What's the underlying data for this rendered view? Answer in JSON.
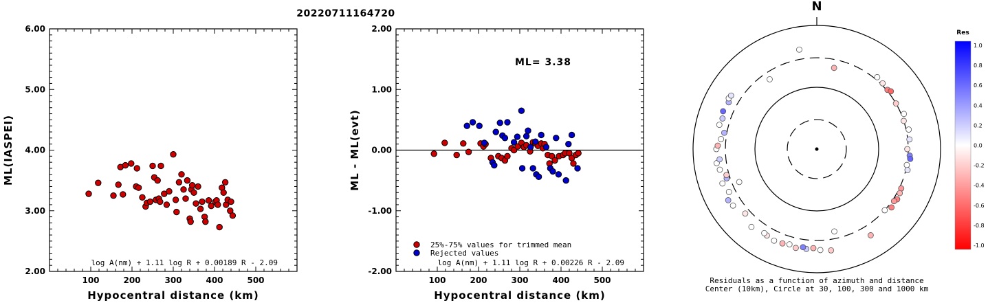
{
  "page_title": "20220711164720",
  "chart_data": [
    {
      "type": "scatter",
      "xlabel": "Hypocentral distance (km)",
      "ylabel": "ML(IASPEI)",
      "xlim": [
        0,
        600
      ],
      "ylim": [
        2.0,
        6.0
      ],
      "x_ticks": [
        "100",
        "200",
        "300",
        "400",
        "500"
      ],
      "y_ticks": [
        "2.00",
        "3.00",
        "4.00",
        "5.00",
        "6.00"
      ],
      "formula": "log A(nm) + 1.11 log R + 0.00189 R - 2.09",
      "series": [
        {
          "color": "#cc0000",
          "points": [
            [
              95,
              3.28
            ],
            [
              118,
              3.46
            ],
            [
              155,
              3.25
            ],
            [
              167,
              3.43
            ],
            [
              172,
              3.72
            ],
            [
              178,
              3.27
            ],
            [
              184,
              3.75
            ],
            [
              198,
              3.78
            ],
            [
              210,
              3.4
            ],
            [
              212,
              3.7
            ],
            [
              216,
              3.38
            ],
            [
              225,
              3.22
            ],
            [
              233,
              3.07
            ],
            [
              236,
              3.13
            ],
            [
              244,
              3.15
            ],
            [
              250,
              3.74
            ],
            [
              254,
              3.55
            ],
            [
              258,
              3.18
            ],
            [
              262,
              3.5
            ],
            [
              265,
              3.2
            ],
            [
              268,
              3.15
            ],
            [
              270,
              3.74
            ],
            [
              278,
              3.28
            ],
            [
              284,
              3.1
            ],
            [
              290,
              3.32
            ],
            [
              300,
              3.93
            ],
            [
              306,
              3.18
            ],
            [
              308,
              2.98
            ],
            [
              314,
              3.47
            ],
            [
              320,
              3.6
            ],
            [
              325,
              3.35
            ],
            [
              330,
              3.2
            ],
            [
              334,
              3.5
            ],
            [
              340,
              2.87
            ],
            [
              342,
              2.82
            ],
            [
              344,
              3.35
            ],
            [
              346,
              3.42
            ],
            [
              350,
              3.3
            ],
            [
              355,
              3.12
            ],
            [
              360,
              3.4
            ],
            [
              366,
              3.03
            ],
            [
              370,
              3.15
            ],
            [
              376,
              2.9
            ],
            [
              378,
              2.82
            ],
            [
              386,
              3.17
            ],
            [
              392,
              3.08
            ],
            [
              402,
              3.15
            ],
            [
              405,
              3.17
            ],
            [
              408,
              3.1
            ],
            [
              412,
              2.73
            ],
            [
              418,
              3.38
            ],
            [
              422,
              3.3
            ],
            [
              426,
              3.47
            ],
            [
              428,
              3.1
            ],
            [
              432,
              3.18
            ],
            [
              438,
              3.0
            ],
            [
              440,
              3.15
            ],
            [
              444,
              2.92
            ]
          ]
        }
      ]
    },
    {
      "type": "scatter",
      "xlabel": "Hypocentral distance (km)",
      "ylabel": "ML - ML(evt)",
      "xlim": [
        0,
        600
      ],
      "ylim": [
        -2.0,
        2.0
      ],
      "x_ticks": [
        "100",
        "200",
        "300",
        "400",
        "500"
      ],
      "y_ticks": [
        "-2.00",
        "-1.00",
        "0.00",
        "1.00",
        "2.00"
      ],
      "zero_line": 0.0,
      "annotation": "ML= 3.38",
      "formula": "log A(nm) + 1.11 log R + 0.00226 R - 2.09",
      "legend": {
        "position": "bottom-left",
        "entries": [
          {
            "label": "25%-75% values for trimmed mean",
            "color": "#cc0000"
          },
          {
            "label": "Rejected values",
            "color": "#0000cc"
          }
        ]
      },
      "series": [
        {
          "name": "25%-75% values for trimmed mean",
          "color": "#cc0000",
          "points": [
            [
              92,
              -0.06
            ],
            [
              118,
              0.12
            ],
            [
              147,
              -0.08
            ],
            [
              163,
              0.11
            ],
            [
              176,
              -0.03
            ],
            [
              205,
              0.11
            ],
            [
              212,
              0.06
            ],
            [
              217,
              0.1
            ],
            [
              230,
              -0.13
            ],
            [
              248,
              -0.1
            ],
            [
              256,
              -0.13
            ],
            [
              264,
              -0.17
            ],
            [
              270,
              -0.1
            ],
            [
              280,
              0.03
            ],
            [
              286,
              0.0
            ],
            [
              295,
              0.06
            ],
            [
              304,
              0.12
            ],
            [
              310,
              0.05
            ],
            [
              316,
              0.08
            ],
            [
              325,
              -0.02
            ],
            [
              332,
              0.13
            ],
            [
              338,
              0.11
            ],
            [
              344,
              0.07
            ],
            [
              352,
              0.11
            ],
            [
              356,
              0.03
            ],
            [
              360,
              0.1
            ],
            [
              368,
              -0.08
            ],
            [
              372,
              -0.22
            ],
            [
              378,
              -0.1
            ],
            [
              385,
              -0.17
            ],
            [
              395,
              -0.1
            ],
            [
              405,
              -0.08
            ],
            [
              410,
              -0.05
            ],
            [
              420,
              -0.05
            ],
            [
              426,
              -0.13
            ],
            [
              430,
              -0.22
            ],
            [
              436,
              -0.08
            ],
            [
              442,
              -0.05
            ]
          ]
        },
        {
          "name": "Rejected values",
          "color": "#0000cc",
          "points": [
            [
              172,
              0.4
            ],
            [
              186,
              0.46
            ],
            [
              202,
              0.4
            ],
            [
              214,
              0.12
            ],
            [
              234,
              -0.2
            ],
            [
              238,
              -0.25
            ],
            [
              242,
              0.3
            ],
            [
              252,
              0.45
            ],
            [
              258,
              0.24
            ],
            [
              264,
              0.2
            ],
            [
              270,
              0.46
            ],
            [
              286,
              0.13
            ],
            [
              294,
              0.22
            ],
            [
              304,
              0.65
            ],
            [
              306,
              -0.3
            ],
            [
              316,
              0.23
            ],
            [
              320,
              0.32
            ],
            [
              326,
              0.05
            ],
            [
              332,
              -0.3
            ],
            [
              338,
              0.14
            ],
            [
              340,
              -0.4
            ],
            [
              346,
              -0.44
            ],
            [
              352,
              0.25
            ],
            [
              364,
              0.05
            ],
            [
              374,
              -0.3
            ],
            [
              380,
              -0.35
            ],
            [
              388,
              0.2
            ],
            [
              394,
              -0.4
            ],
            [
              412,
              -0.5
            ],
            [
              418,
              0.1
            ],
            [
              426,
              0.25
            ],
            [
              440,
              -0.3
            ]
          ]
        }
      ]
    },
    {
      "type": "scatter",
      "subtype": "polar-azimuth-distance",
      "north_label": "N",
      "caption_line1": "Residuals as a function of azimuth and distance",
      "caption_line2": "Center (10km), Circle at 30, 100, 300 and 1000 km",
      "colorbar": {
        "title": "Res",
        "labels": [
          "1.0",
          "0.8",
          "0.6",
          "0.4",
          "0.2",
          "0.0",
          "-0.2",
          "-0.4",
          "-0.6",
          "-0.8",
          "-1.0"
        ],
        "max_color": "#0000ff",
        "min_color": "#ff0000"
      },
      "points_azimuth_deg_distance_km_residual": [
        [
          326,
          230,
          0.0
        ],
        [
          12,
          220,
          -0.3
        ],
        [
          350,
          430,
          0.0
        ],
        [
          40,
          330,
          0.0
        ],
        [
          45,
          320,
          -0.1
        ],
        [
          50,
          310,
          -0.5
        ],
        [
          52,
          330,
          -0.6
        ],
        [
          60,
          300,
          -0.2
        ],
        [
          68,
          330,
          0.0
        ],
        [
          72,
          300,
          -0.1
        ],
        [
          78,
          330,
          0.0
        ],
        [
          84,
          320,
          0.1
        ],
        [
          90,
          290,
          -0.1
        ],
        [
          94,
          320,
          0.5
        ],
        [
          96,
          330,
          0.6
        ],
        [
          100,
          300,
          0.0
        ],
        [
          103,
          320,
          0.1
        ],
        [
          115,
          320,
          -0.4
        ],
        [
          118,
          330,
          -0.3
        ],
        [
          122,
          340,
          -0.5
        ],
        [
          124,
          320,
          -0.4
        ],
        [
          128,
          340,
          -0.5
        ],
        [
          132,
          300,
          0.0
        ],
        [
          148,
          440,
          -0.3
        ],
        [
          168,
          230,
          0.0
        ],
        [
          172,
          450,
          -0.2
        ],
        [
          178,
          430,
          0.0
        ],
        [
          182,
          400,
          -0.3
        ],
        [
          186,
          420,
          0.2
        ],
        [
          188,
          400,
          0.5
        ],
        [
          192,
          430,
          -0.2
        ],
        [
          196,
          400,
          0.0
        ],
        [
          200,
          420,
          -0.3
        ],
        [
          205,
          430,
          0.0
        ],
        [
          210,
          410,
          -0.1
        ],
        [
          212,
          400,
          0.0
        ],
        [
          220,
          440,
          0.0
        ],
        [
          228,
          360,
          -0.1
        ],
        [
          236,
          430,
          0.0
        ],
        [
          240,
          450,
          0.3
        ],
        [
          244,
          380,
          0.0
        ],
        [
          247,
          230,
          0.0
        ],
        [
          250,
          420,
          0.0
        ],
        [
          252,
          340,
          0.3
        ],
        [
          254,
          330,
          -0.2
        ],
        [
          258,
          400,
          0.0
        ],
        [
          262,
          430,
          0.0
        ],
        [
          264,
          380,
          0.2
        ],
        [
          270,
          420,
          0.0
        ],
        [
          272,
          400,
          -0.3
        ],
        [
          276,
          360,
          0.0
        ],
        [
          280,
          330,
          0.3
        ],
        [
          284,
          420,
          0.0
        ],
        [
          288,
          400,
          0.2
        ],
        [
          292,
          430,
          0.6
        ],
        [
          298,
          410,
          0.3
        ],
        [
          300,
          440,
          0.0
        ],
        [
          302,
          430,
          0.1
        ]
      ]
    }
  ]
}
